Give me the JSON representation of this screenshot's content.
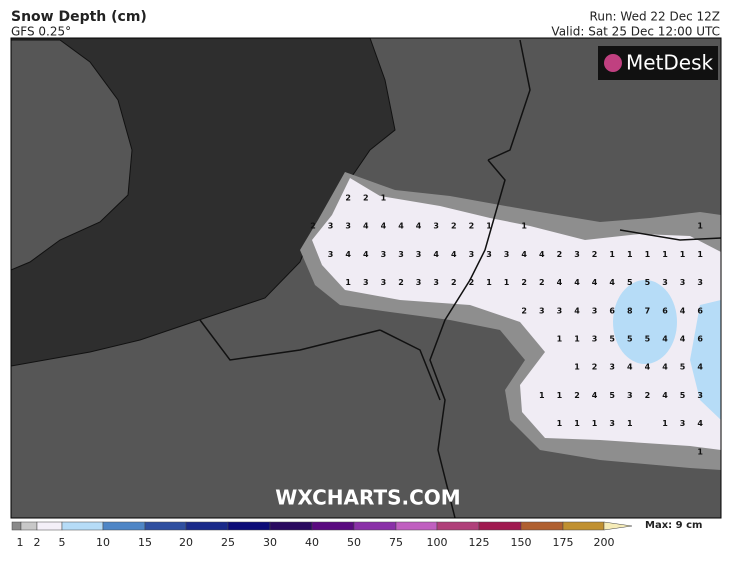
{
  "header": {
    "title": "Snow Depth (cm)",
    "model": "GFS 0.25°",
    "run": "Run: Wed 22 Dec 12Z",
    "valid": "Valid: Sat 25 Dec 12:00 UTC"
  },
  "logo": "MetDesk",
  "watermark": "WXCHARTS.COM",
  "grid_values": [
    [
      null,
      null,
      2,
      2,
      1
    ],
    [
      2,
      3,
      3,
      4,
      4,
      4,
      4,
      3,
      2,
      2,
      1,
      null,
      1,
      null,
      null,
      null,
      null,
      null,
      null,
      null,
      null,
      null,
      1
    ],
    [
      null,
      3,
      4,
      4,
      3,
      3,
      3,
      4,
      4,
      3,
      3,
      3,
      4,
      4,
      2,
      3,
      2,
      1,
      1,
      1,
      1,
      1,
      1
    ],
    [
      null,
      null,
      1,
      3,
      3,
      2,
      3,
      3,
      2,
      2,
      1,
      1,
      2,
      2,
      4,
      4,
      4,
      4,
      5,
      5,
      3,
      3,
      3
    ],
    [
      null,
      null,
      null,
      null,
      null,
      null,
      null,
      null,
      null,
      null,
      null,
      null,
      2,
      3,
      3,
      4,
      3,
      6,
      8,
      7,
      6,
      4,
      6
    ],
    [
      null,
      null,
      null,
      null,
      null,
      null,
      null,
      null,
      null,
      null,
      null,
      null,
      null,
      null,
      1,
      1,
      3,
      5,
      5,
      5,
      4,
      4,
      6
    ],
    [
      null,
      null,
      null,
      null,
      null,
      null,
      null,
      null,
      null,
      null,
      null,
      null,
      null,
      null,
      null,
      1,
      2,
      3,
      4,
      4,
      4,
      5,
      4
    ],
    [
      null,
      null,
      null,
      null,
      null,
      null,
      null,
      null,
      null,
      null,
      null,
      null,
      null,
      1,
      1,
      2,
      4,
      5,
      3,
      2,
      4,
      5,
      3
    ],
    [
      null,
      null,
      null,
      null,
      null,
      null,
      null,
      null,
      null,
      null,
      null,
      null,
      null,
      null,
      1,
      1,
      1,
      3,
      1,
      null,
      1,
      3,
      4
    ],
    [
      null,
      null,
      null,
      null,
      null,
      null,
      null,
      null,
      null,
      null,
      null,
      null,
      null,
      null,
      null,
      null,
      null,
      null,
      null,
      null,
      null,
      null,
      1
    ]
  ],
  "legend": {
    "ticks": [
      1,
      2,
      5,
      10,
      15,
      20,
      25,
      30,
      40,
      50,
      75,
      100,
      125,
      150,
      175,
      200
    ],
    "colors": [
      "#8a8a8a",
      "#c8c8c8",
      "#f4f0f8",
      "#b6dcf7",
      "#4f86c6",
      "#2f4fa0",
      "#1a2a8a",
      "#0c0c78",
      "#2a0a60",
      "#5a0a80",
      "#8a30a8",
      "#c060c0",
      "#b0407a",
      "#a01a50",
      "#b06030",
      "#c09030",
      "#d4b460",
      "#e8d48a",
      "#f6ecb8"
    ],
    "max": "Max: 9 cm"
  }
}
